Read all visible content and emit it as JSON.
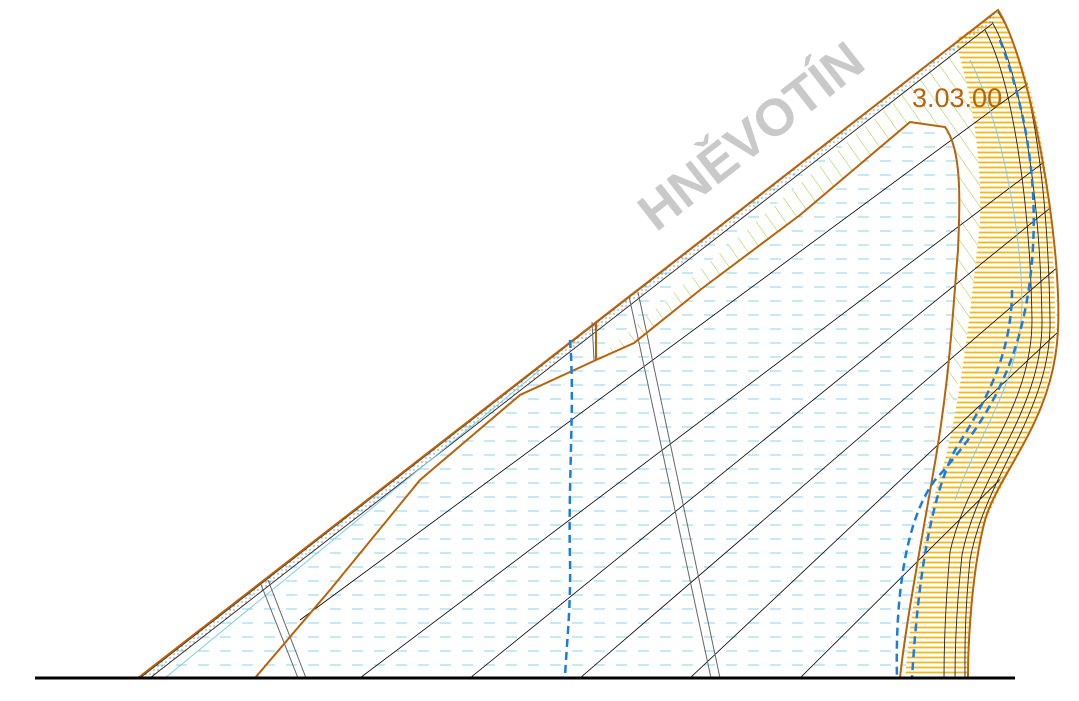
{
  "map": {
    "area_name": "HNĚVOTÍN",
    "parcel_code": "3.03.00"
  },
  "colors": {
    "background": "#ffffff",
    "boundary_brown": "#b8620a",
    "water_hatch_blue": "#8fd3ee",
    "stream_blue": "#1a7be0",
    "light_blue_line": "#7ccdea",
    "buffer_orange": "#f2b818",
    "green_hatch": "#9ccc3c",
    "baseline_black": "#000000",
    "watermark_gray": "#c9c9c9"
  }
}
